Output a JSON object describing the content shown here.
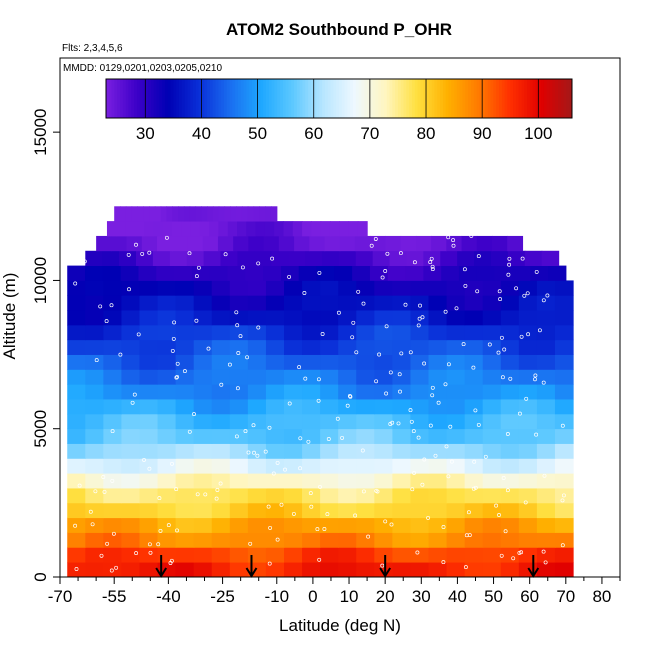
{
  "chart_data": {
    "type": "heatmap",
    "title": "ATOM2 Southbound P_OHR",
    "annotations": [
      "Flts: 2,3,4,5,6",
      "MMDD: 0129,0201,0203,0205,0210"
    ],
    "xlabel": "Latitude (deg N)",
    "ylabel": "Altitude (m)",
    "xlim": [
      -70,
      85
    ],
    "ylim": [
      0,
      17500
    ],
    "x_ticks": [
      -70,
      -55,
      -40,
      -25,
      -10,
      0,
      10,
      20,
      30,
      40,
      50,
      60,
      70,
      80
    ],
    "x_minor_ticks": [
      -65,
      -60,
      -50,
      -45,
      -35,
      -30,
      -20,
      -15,
      -5,
      5,
      15,
      25,
      35,
      45,
      55,
      65,
      75,
      85
    ],
    "y_ticks": [
      0,
      5000,
      10000,
      15000
    ],
    "colorbar": {
      "min": 23,
      "max": 106,
      "ticks": [
        30,
        40,
        50,
        60,
        70,
        80,
        90,
        100
      ],
      "palette": [
        "#7a1fe0",
        "#3c00c8",
        "#0000b4",
        "#0a2fd8",
        "#1a6ef0",
        "#1ea8ff",
        "#5cc8ff",
        "#b8e6ff",
        "#eef8ff",
        "#fff6c0",
        "#ffe040",
        "#ffb000",
        "#ff7a00",
        "#ff3000",
        "#e00000",
        "#a41818"
      ]
    },
    "latitude_range": [
      -68,
      72
    ],
    "layers": [
      {
        "alt_bottom": 0,
        "alt_top": 500,
        "value": 97
      },
      {
        "alt_bottom": 500,
        "alt_top": 1000,
        "value": 94
      },
      {
        "alt_bottom": 1000,
        "alt_top": 1500,
        "value": 88
      },
      {
        "alt_bottom": 1500,
        "alt_top": 2000,
        "value": 85
      },
      {
        "alt_bottom": 2000,
        "alt_top": 2500,
        "value": 80
      },
      {
        "alt_bottom": 2500,
        "alt_top": 3000,
        "value": 77
      },
      {
        "alt_bottom": 3000,
        "alt_top": 3500,
        "value": 72
      },
      {
        "alt_bottom": 3500,
        "alt_top": 4000,
        "value": 66
      },
      {
        "alt_bottom": 4000,
        "alt_top": 4500,
        "value": 60
      },
      {
        "alt_bottom": 4500,
        "alt_top": 5000,
        "value": 56
      },
      {
        "alt_bottom": 5000,
        "alt_top": 5500,
        "value": 54
      },
      {
        "alt_bottom": 5500,
        "alt_top": 6000,
        "value": 51
      },
      {
        "alt_bottom": 6000,
        "alt_top": 6500,
        "value": 48
      },
      {
        "alt_bottom": 6500,
        "alt_top": 7000,
        "value": 46
      },
      {
        "alt_bottom": 7000,
        "alt_top": 7500,
        "value": 44
      },
      {
        "alt_bottom": 7500,
        "alt_top": 8000,
        "value": 42
      },
      {
        "alt_bottom": 8000,
        "alt_top": 8500,
        "value": 40
      },
      {
        "alt_bottom": 8500,
        "alt_top": 9000,
        "value": 37
      },
      {
        "alt_bottom": 9000,
        "alt_top": 9500,
        "value": 35
      },
      {
        "alt_bottom": 9500,
        "alt_top": 10000,
        "value": 33
      },
      {
        "alt_bottom": 10000,
        "alt_top": 10500,
        "value": 31
      },
      {
        "alt_bottom": 10500,
        "alt_top": 11000,
        "value": 28
      },
      {
        "alt_bottom": 11000,
        "alt_top": 11500,
        "value": 25
      },
      {
        "alt_bottom": 11500,
        "alt_top": 12000,
        "value": 24
      },
      {
        "alt_bottom": 12000,
        "alt_top": 12500,
        "value": 23
      }
    ],
    "arrow_markers_lat": [
      -42,
      -17,
      20,
      61
    ]
  }
}
